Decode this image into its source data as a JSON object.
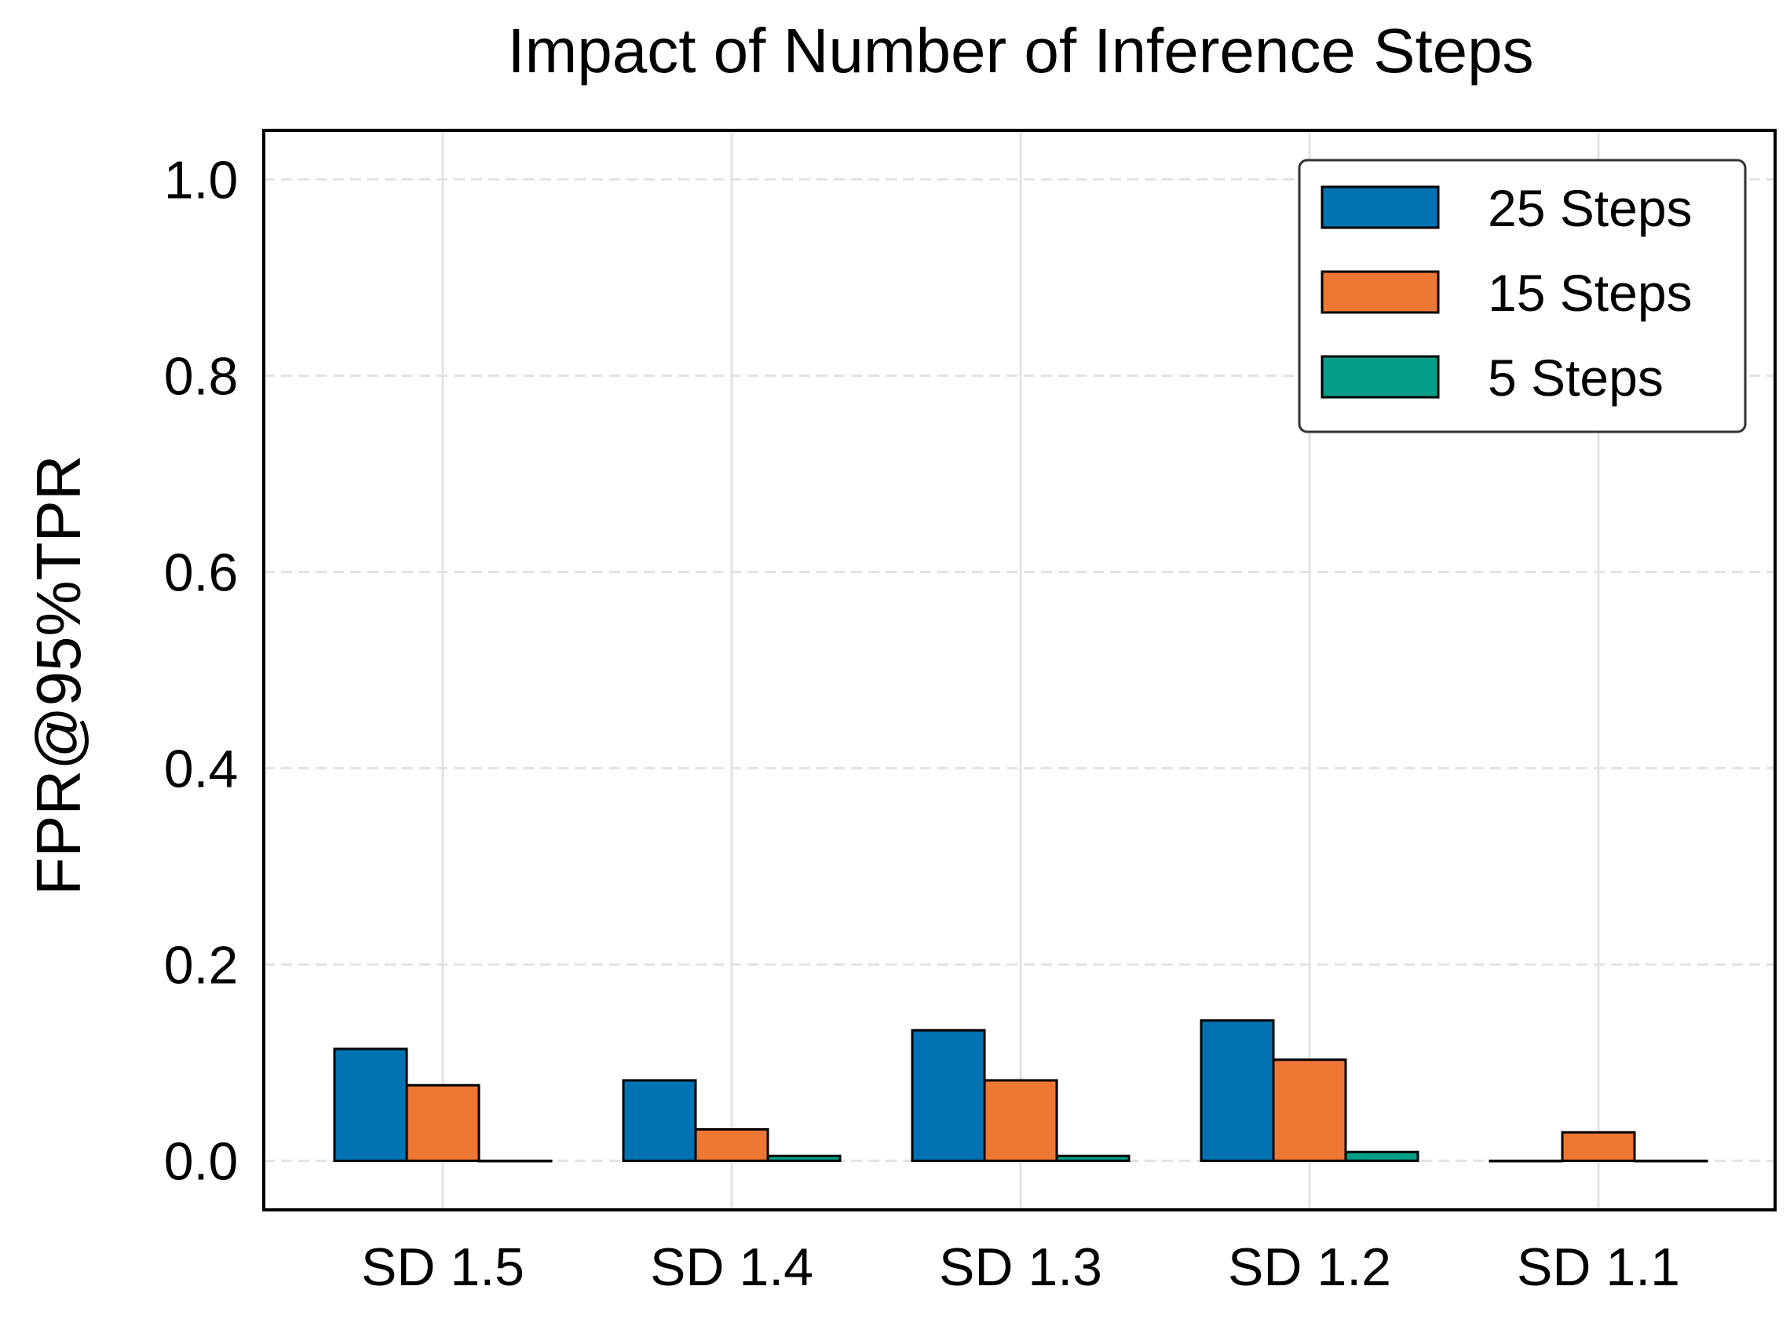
{
  "chart_data": {
    "type": "bar",
    "title": "Impact of Number of Inference Steps",
    "xlabel": "",
    "ylabel": "FPR@95%TPR",
    "categories": [
      "SD 1.5",
      "SD 1.4",
      "SD 1.3",
      "SD 1.2",
      "SD 1.1"
    ],
    "series": [
      {
        "name": "25 Steps",
        "color": "#0173b2",
        "values": [
          0.114,
          0.082,
          0.133,
          0.143,
          0.0
        ]
      },
      {
        "name": "15 Steps",
        "color": "#ee7733",
        "values": [
          0.077,
          0.032,
          0.082,
          0.103,
          0.029
        ]
      },
      {
        "name": "5 Steps",
        "color": "#029e88",
        "values": [
          0.0,
          0.005,
          0.005,
          0.009,
          0.0
        ]
      }
    ],
    "ylim": [
      -0.05,
      1.05
    ],
    "yticks": [
      0.0,
      0.2,
      0.4,
      0.6,
      0.8,
      1.0
    ],
    "ytick_labels": [
      "0.0",
      "0.2",
      "0.4",
      "0.6",
      "0.8",
      "1.0"
    ],
    "grid": true,
    "legend_position": "top-right"
  }
}
